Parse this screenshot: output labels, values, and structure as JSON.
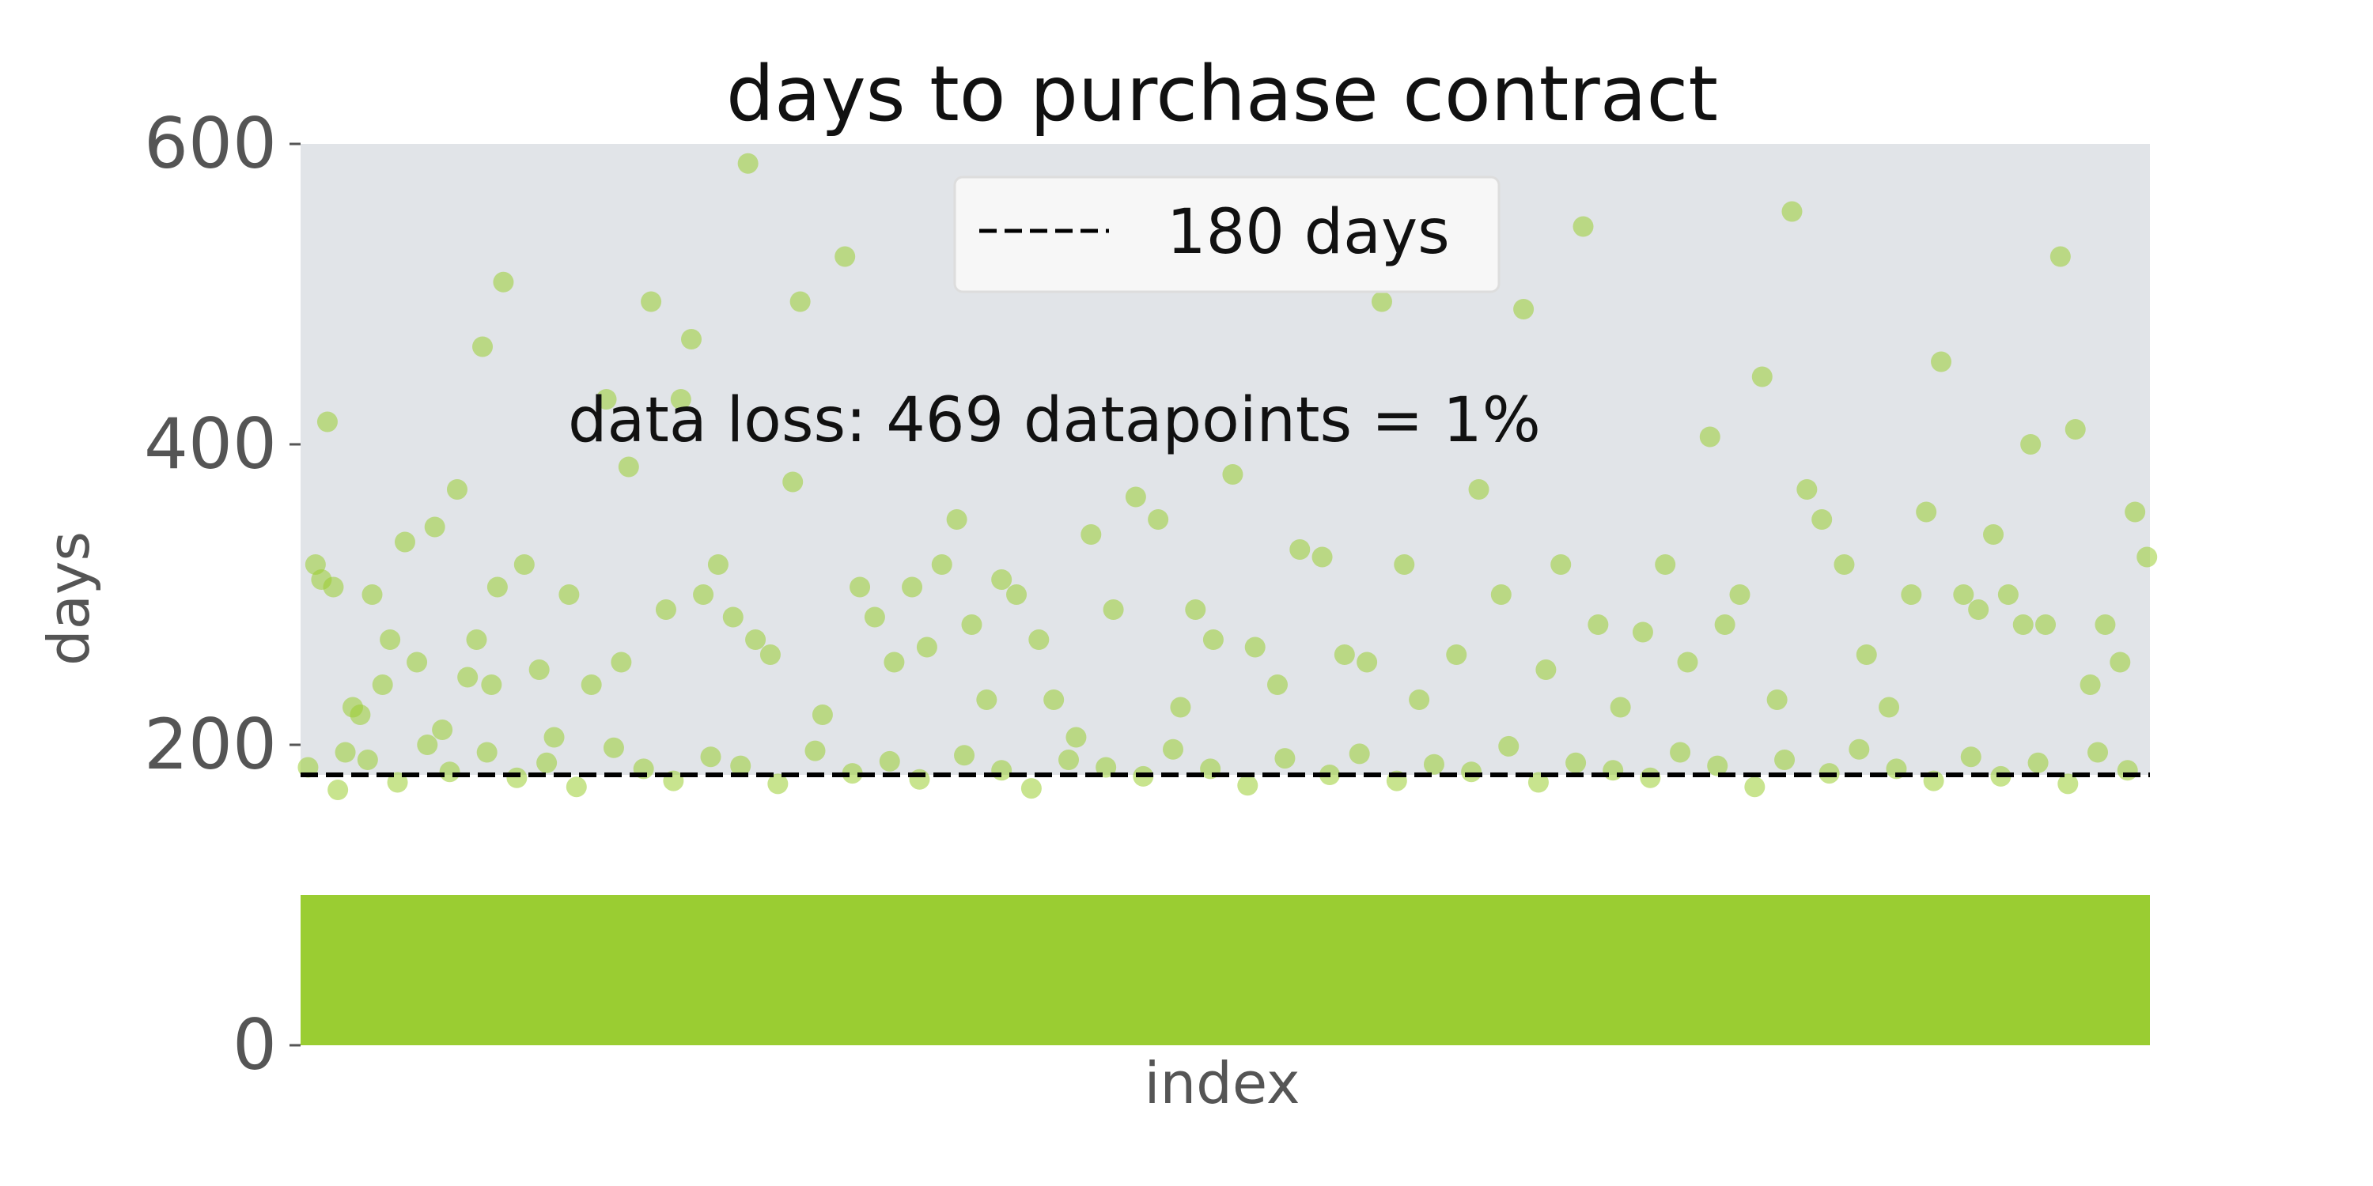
{
  "chart_data": {
    "type": "scatter",
    "title": "days to purchase contract",
    "xlabel": "index",
    "ylabel": "days",
    "ylim": [
      0,
      600
    ],
    "yticks": [
      0,
      200,
      400,
      600
    ],
    "x_ticks_shown": false,
    "grid": false,
    "legend_position": "top-center",
    "point_color": "#9acd32",
    "threshold_line": {
      "label": "180 days",
      "y": 180,
      "style": "dashed",
      "color": "#000000"
    },
    "annotation": "data loss: 469 datapoints = 1%",
    "background_above_threshold": "#e1e4e8",
    "background_below_threshold": "#ffffff",
    "series": [
      {
        "points": [
          [
            10,
            320
          ],
          [
            14,
            310
          ],
          [
            18,
            415
          ],
          [
            22,
            305
          ],
          [
            30,
            195
          ],
          [
            35,
            225
          ],
          [
            40,
            220
          ],
          [
            48,
            300
          ],
          [
            55,
            240
          ],
          [
            60,
            270
          ],
          [
            70,
            335
          ],
          [
            78,
            255
          ],
          [
            90,
            345
          ],
          [
            95,
            210
          ],
          [
            105,
            370
          ],
          [
            112,
            245
          ],
          [
            118,
            270
          ],
          [
            122,
            465
          ],
          [
            128,
            240
          ],
          [
            132,
            305
          ],
          [
            136,
            508
          ],
          [
            150,
            320
          ],
          [
            160,
            250
          ],
          [
            170,
            205
          ],
          [
            180,
            300
          ],
          [
            195,
            240
          ],
          [
            205,
            430
          ],
          [
            215,
            255
          ],
          [
            220,
            385
          ],
          [
            235,
            495
          ],
          [
            245,
            290
          ],
          [
            255,
            430
          ],
          [
            262,
            470
          ],
          [
            270,
            300
          ],
          [
            280,
            320
          ],
          [
            290,
            285
          ],
          [
            300,
            587
          ],
          [
            305,
            270
          ],
          [
            315,
            260
          ],
          [
            330,
            375
          ],
          [
            335,
            495
          ],
          [
            350,
            220
          ],
          [
            365,
            525
          ],
          [
            375,
            305
          ],
          [
            385,
            285
          ],
          [
            398,
            255
          ],
          [
            410,
            305
          ],
          [
            420,
            265
          ],
          [
            430,
            320
          ],
          [
            440,
            350
          ],
          [
            450,
            280
          ],
          [
            460,
            230
          ],
          [
            470,
            310
          ],
          [
            480,
            300
          ],
          [
            495,
            270
          ],
          [
            505,
            230
          ],
          [
            520,
            205
          ],
          [
            530,
            340
          ],
          [
            545,
            290
          ],
          [
            560,
            365
          ],
          [
            575,
            350
          ],
          [
            590,
            225
          ],
          [
            600,
            290
          ],
          [
            612,
            270
          ],
          [
            625,
            380
          ],
          [
            640,
            265
          ],
          [
            655,
            240
          ],
          [
            670,
            330
          ],
          [
            685,
            325
          ],
          [
            700,
            260
          ],
          [
            715,
            255
          ],
          [
            725,
            495
          ],
          [
            740,
            320
          ],
          [
            750,
            230
          ],
          [
            765,
            545
          ],
          [
            775,
            260
          ],
          [
            790,
            370
          ],
          [
            805,
            300
          ],
          [
            820,
            490
          ],
          [
            835,
            250
          ],
          [
            845,
            320
          ],
          [
            860,
            545
          ],
          [
            870,
            280
          ],
          [
            885,
            225
          ],
          [
            900,
            275
          ],
          [
            915,
            320
          ],
          [
            930,
            255
          ],
          [
            945,
            405
          ],
          [
            955,
            280
          ],
          [
            965,
            300
          ],
          [
            980,
            445
          ],
          [
            990,
            230
          ],
          [
            1000,
            555
          ],
          [
            1010,
            370
          ],
          [
            1020,
            350
          ],
          [
            1035,
            320
          ],
          [
            1050,
            260
          ],
          [
            1065,
            225
          ],
          [
            1080,
            300
          ],
          [
            1090,
            355
          ],
          [
            1100,
            455
          ],
          [
            1115,
            300
          ],
          [
            1125,
            290
          ],
          [
            1135,
            340
          ],
          [
            1145,
            300
          ],
          [
            1155,
            280
          ],
          [
            1160,
            400
          ],
          [
            1170,
            280
          ],
          [
            1180,
            525
          ],
          [
            1190,
            410
          ],
          [
            1200,
            240
          ],
          [
            1210,
            280
          ],
          [
            1220,
            255
          ],
          [
            1230,
            355
          ],
          [
            1238,
            325
          ],
          [
            5,
            185
          ],
          [
            25,
            170
          ],
          [
            45,
            190
          ],
          [
            65,
            175
          ],
          [
            85,
            200
          ],
          [
            100,
            182
          ],
          [
            125,
            195
          ],
          [
            145,
            178
          ],
          [
            165,
            188
          ],
          [
            185,
            172
          ],
          [
            210,
            198
          ],
          [
            230,
            184
          ],
          [
            250,
            176
          ],
          [
            275,
            192
          ],
          [
            295,
            186
          ],
          [
            320,
            174
          ],
          [
            345,
            196
          ],
          [
            370,
            181
          ],
          [
            395,
            189
          ],
          [
            415,
            177
          ],
          [
            445,
            193
          ],
          [
            470,
            183
          ],
          [
            490,
            171
          ],
          [
            515,
            190
          ],
          [
            540,
            185
          ],
          [
            565,
            179
          ],
          [
            585,
            197
          ],
          [
            610,
            184
          ],
          [
            635,
            173
          ],
          [
            660,
            191
          ],
          [
            690,
            180
          ],
          [
            710,
            194
          ],
          [
            735,
            176
          ],
          [
            760,
            187
          ],
          [
            785,
            182
          ],
          [
            810,
            199
          ],
          [
            830,
            175
          ],
          [
            855,
            188
          ],
          [
            880,
            183
          ],
          [
            905,
            178
          ],
          [
            925,
            195
          ],
          [
            950,
            186
          ],
          [
            975,
            172
          ],
          [
            995,
            190
          ],
          [
            1025,
            181
          ],
          [
            1045,
            197
          ],
          [
            1070,
            184
          ],
          [
            1095,
            176
          ],
          [
            1120,
            192
          ],
          [
            1140,
            179
          ],
          [
            1165,
            188
          ],
          [
            1185,
            174
          ],
          [
            1205,
            195
          ],
          [
            1225,
            183
          ]
        ]
      }
    ]
  }
}
